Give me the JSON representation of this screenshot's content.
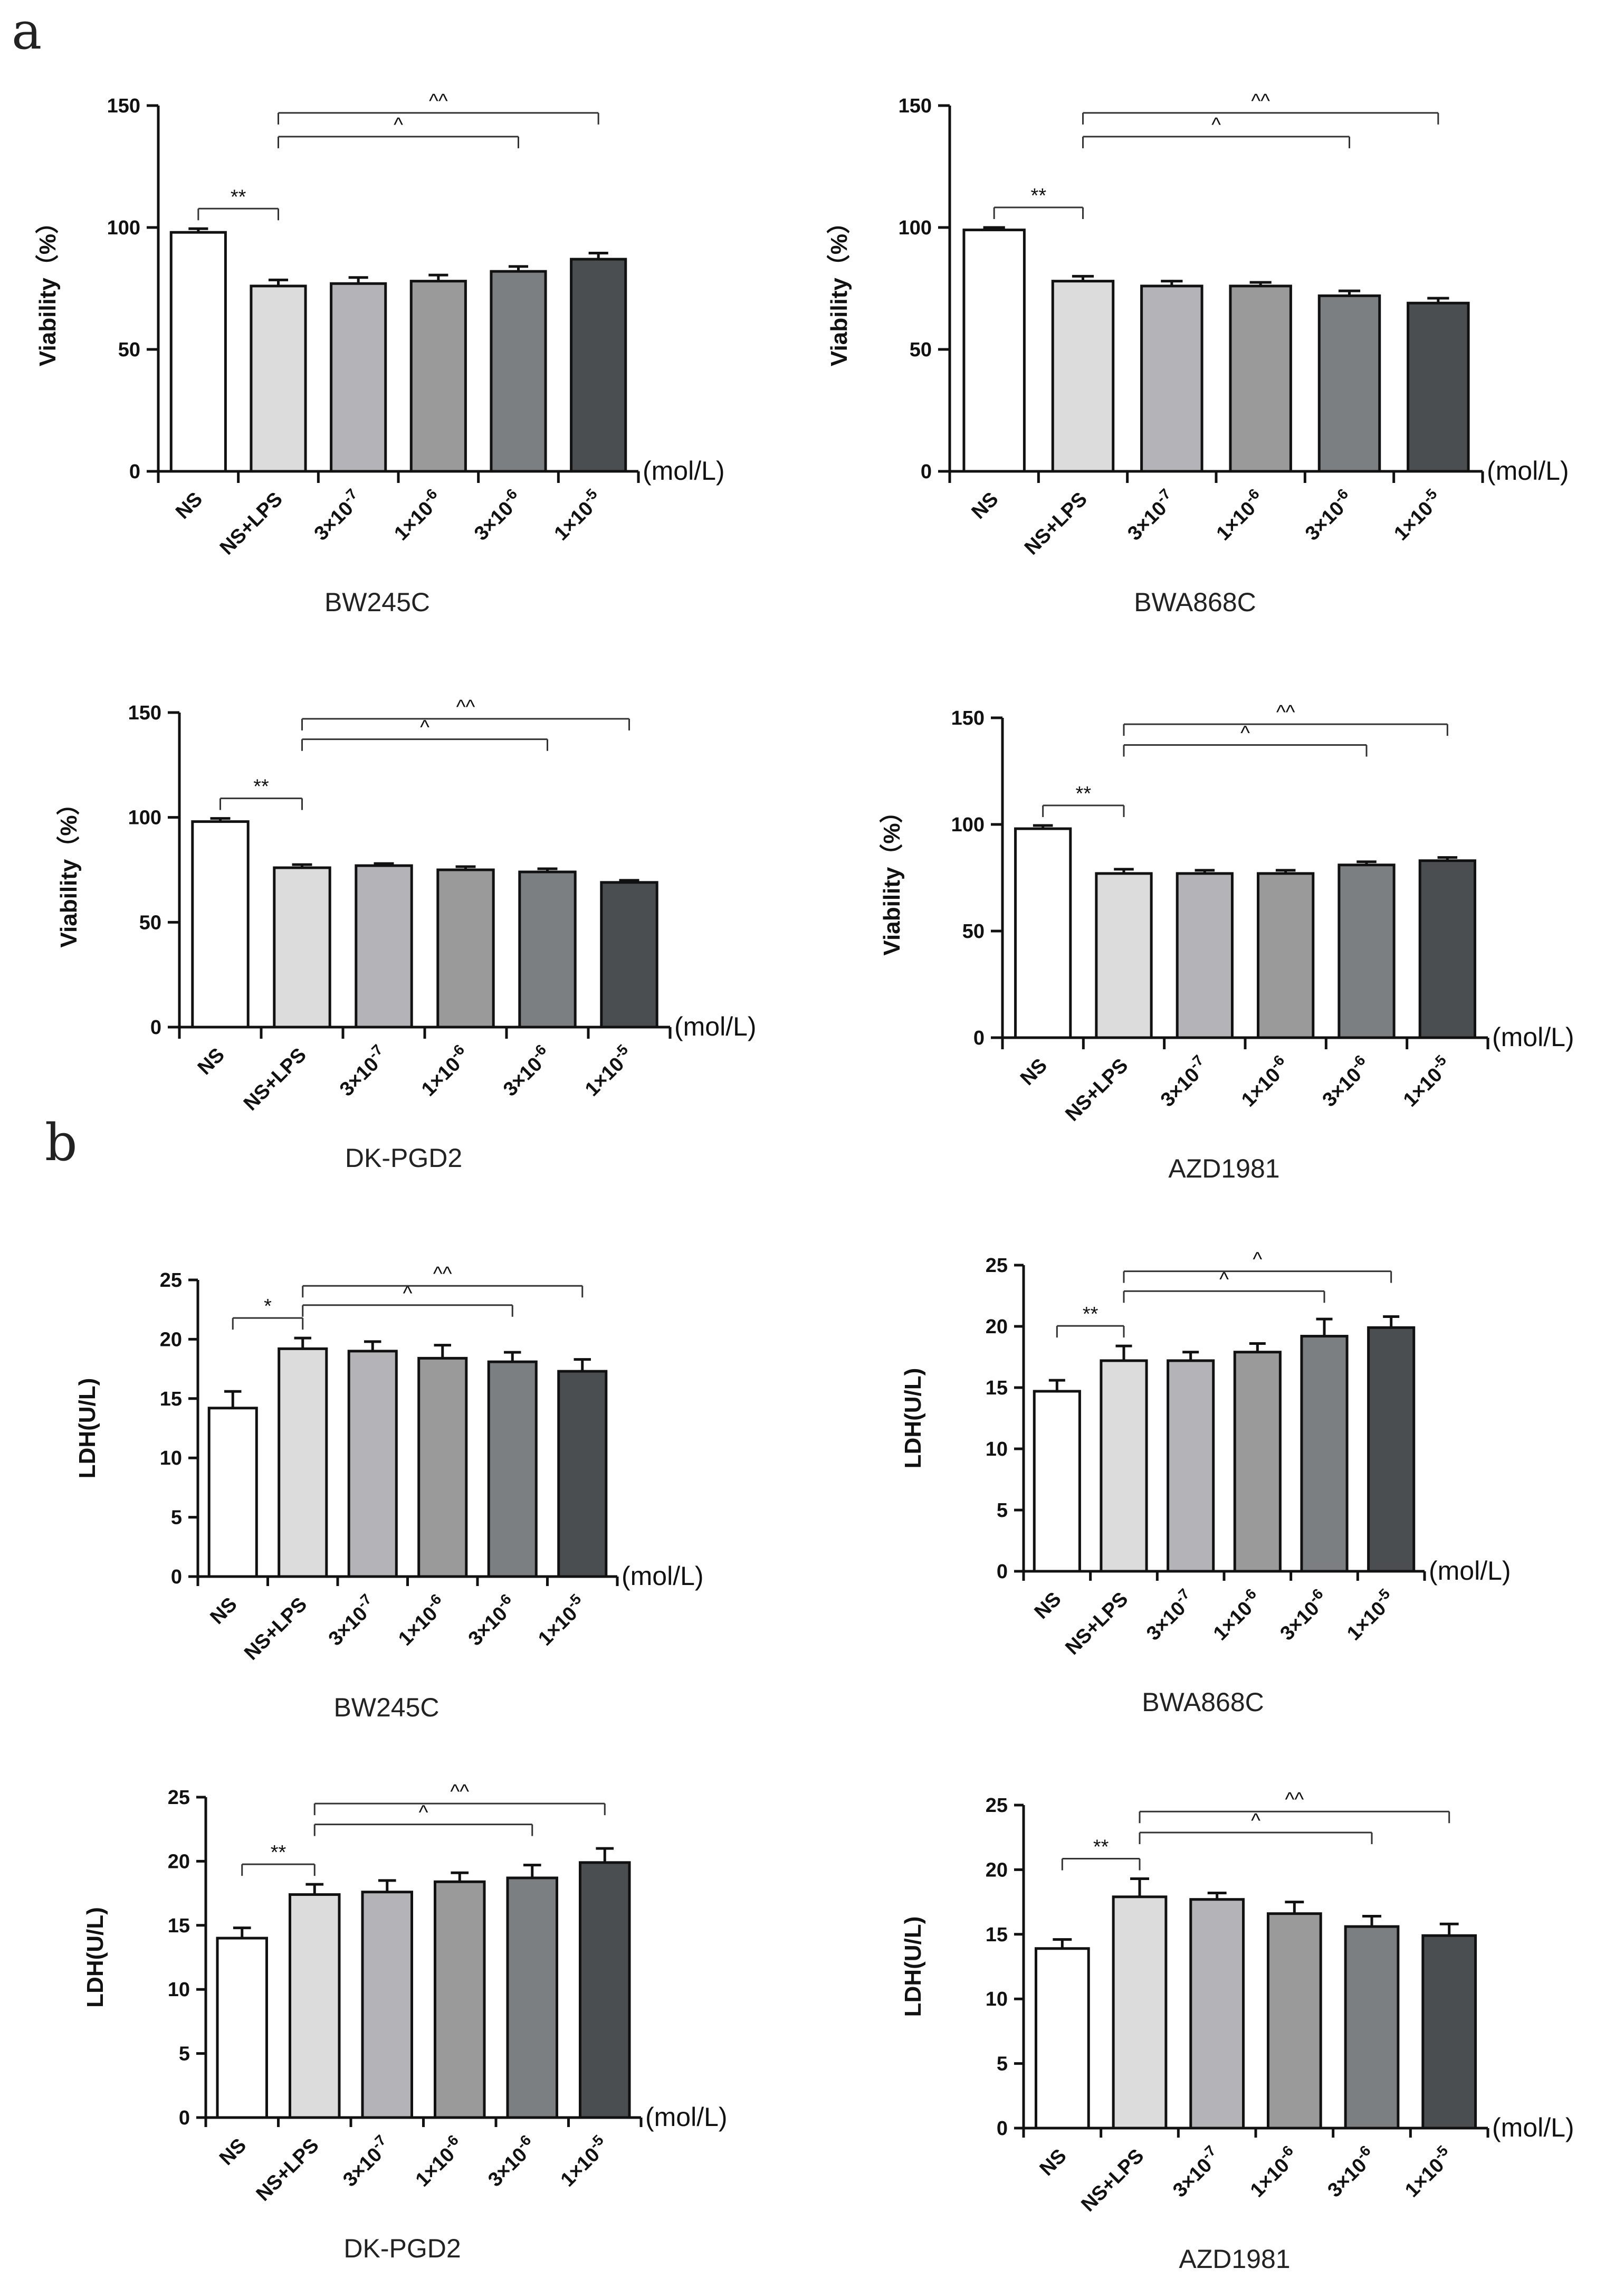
{
  "panel_labels": [
    "a",
    "b"
  ],
  "colors": [
    "#ffffff",
    "#dcdcdc",
    "#b4b4b8",
    "#9a9a9a",
    "#7b7f81",
    "#4a4e50"
  ],
  "chart_data": [
    {
      "type": "bar",
      "title": "BW245C",
      "ylabel": "Viability（%）",
      "unit": "(mol/L)",
      "ylim": [
        0,
        150
      ],
      "yticks": [
        "0",
        "50",
        "100",
        "150"
      ],
      "categories": [
        "NS",
        "NS+LPS",
        "3×10",
        "1×10",
        "3×10",
        "1×10"
      ],
      "exponents": [
        "",
        "",
        "-7",
        "-6",
        "-6",
        "-5"
      ],
      "values": [
        98,
        76,
        77,
        78,
        82,
        87
      ],
      "errors": [
        1.5,
        2.5,
        2.5,
        2.5,
        2,
        2.5
      ],
      "significance": [
        {
          "label": "**",
          "from": 0,
          "to": 1
        },
        {
          "label": "^",
          "from": 1,
          "to": 4
        },
        {
          "label": "^^",
          "from": 1,
          "to": 5
        }
      ]
    },
    {
      "type": "bar",
      "title": "BWA868C",
      "ylabel": "Viability（%）",
      "unit": "(mol/L)",
      "ylim": [
        0,
        150
      ],
      "yticks": [
        "0",
        "50",
        "100",
        "150"
      ],
      "categories": [
        "NS",
        "NS+LPS",
        "3×10",
        "1×10",
        "3×10",
        "1×10"
      ],
      "exponents": [
        "",
        "",
        "-7",
        "-6",
        "-6",
        "-5"
      ],
      "values": [
        99,
        78,
        76,
        76,
        72,
        69
      ],
      "errors": [
        1,
        2,
        2,
        1.5,
        2,
        2
      ],
      "significance": [
        {
          "label": "**",
          "from": 0,
          "to": 1
        },
        {
          "label": "^",
          "from": 1,
          "to": 4
        },
        {
          "label": "^^",
          "from": 1,
          "to": 5
        }
      ]
    },
    {
      "type": "bar",
      "title": "DK-PGD2",
      "ylabel": "Viability（%）",
      "unit": "(mol/L)",
      "ylim": [
        0,
        150
      ],
      "yticks": [
        "0",
        "50",
        "100",
        "150"
      ],
      "categories": [
        "NS",
        "NS+LPS",
        "3×10",
        "1×10",
        "3×10",
        "1×10"
      ],
      "exponents": [
        "",
        "",
        "-7",
        "-6",
        "-6",
        "-5"
      ],
      "values": [
        98,
        76,
        77,
        75,
        74,
        69
      ],
      "errors": [
        1.5,
        1.5,
        1,
        1.5,
        1.5,
        1
      ],
      "significance": [
        {
          "label": "**",
          "from": 0,
          "to": 1
        },
        {
          "label": "^",
          "from": 1,
          "to": 4
        },
        {
          "label": "^^",
          "from": 1,
          "to": 5
        }
      ]
    },
    {
      "type": "bar",
      "title": "AZD1981",
      "ylabel": "Viability（%）",
      "unit": "(mol/L)",
      "ylim": [
        0,
        150
      ],
      "yticks": [
        "0",
        "50",
        "100",
        "150"
      ],
      "categories": [
        "NS",
        "NS+LPS",
        "3×10",
        "1×10",
        "3×10",
        "1×10"
      ],
      "exponents": [
        "",
        "",
        "-7",
        "-6",
        "-6",
        "-5"
      ],
      "values": [
        98,
        77,
        77,
        77,
        81,
        83
      ],
      "errors": [
        1.5,
        2,
        1.5,
        1.5,
        1.5,
        1.5
      ],
      "significance": [
        {
          "label": "**",
          "from": 0,
          "to": 1
        },
        {
          "label": "^",
          "from": 1,
          "to": 4
        },
        {
          "label": "^^",
          "from": 1,
          "to": 5
        }
      ]
    },
    {
      "type": "bar",
      "title": "BW245C",
      "ylabel": "LDH(U/L)",
      "unit": "(mol/L)",
      "ylim": [
        0,
        25
      ],
      "yticks": [
        "0",
        "5",
        "10",
        "15",
        "20",
        "25"
      ],
      "categories": [
        "NS",
        "NS+LPS",
        "3×10",
        "1×10",
        "3×10",
        "1×10"
      ],
      "exponents": [
        "",
        "",
        "-7",
        "-6",
        "-6",
        "-5"
      ],
      "values": [
        14.2,
        19.2,
        19.0,
        18.4,
        18.1,
        17.3
      ],
      "errors": [
        1.4,
        0.9,
        0.8,
        1.1,
        0.8,
        1.0
      ],
      "significance": [
        {
          "label": "*",
          "from": 0,
          "to": 1
        },
        {
          "label": "^",
          "from": 1,
          "to": 4
        },
        {
          "label": "^^",
          "from": 1,
          "to": 5
        }
      ]
    },
    {
      "type": "bar",
      "title": "BWA868C",
      "ylabel": "LDH(U/L)",
      "unit": "(mol/L)",
      "ylim": [
        0,
        25
      ],
      "yticks": [
        "0",
        "5",
        "10",
        "15",
        "20",
        "25"
      ],
      "categories": [
        "NS",
        "NS+LPS",
        "3×10",
        "1×10",
        "3×10",
        "1×10"
      ],
      "exponents": [
        "",
        "",
        "-7",
        "-6",
        "-6",
        "-5"
      ],
      "values": [
        14.7,
        17.2,
        17.2,
        17.9,
        19.2,
        19.9
      ],
      "errors": [
        0.9,
        1.2,
        0.7,
        0.7,
        1.4,
        0.9
      ],
      "significance": [
        {
          "label": "**",
          "from": 0,
          "to": 1
        },
        {
          "label": "^",
          "from": 1,
          "to": 4
        },
        {
          "label": "^",
          "from": 1,
          "to": 5
        }
      ]
    },
    {
      "type": "bar",
      "title": "DK-PGD2",
      "ylabel": "LDH(U/L)",
      "unit": "(mol/L)",
      "ylim": [
        0,
        25
      ],
      "yticks": [
        "0",
        "5",
        "10",
        "15",
        "20",
        "25"
      ],
      "categories": [
        "NS",
        "NS+LPS",
        "3×10",
        "1×10",
        "3×10",
        "1×10"
      ],
      "exponents": [
        "",
        "",
        "-7",
        "-6",
        "-6",
        "-5"
      ],
      "values": [
        14.0,
        17.4,
        17.6,
        18.4,
        18.7,
        19.9
      ],
      "errors": [
        0.8,
        0.8,
        0.9,
        0.7,
        1.0,
        1.1
      ],
      "significance": [
        {
          "label": "**",
          "from": 0,
          "to": 1
        },
        {
          "label": "^",
          "from": 1,
          "to": 4
        },
        {
          "label": "^^",
          "from": 1,
          "to": 5
        }
      ]
    },
    {
      "type": "bar",
      "title": "AZD1981",
      "ylabel": "LDH(U/L)",
      "unit": "(mol/L)",
      "ylim": [
        0,
        25
      ],
      "yticks": [
        "0",
        "5",
        "10",
        "15",
        "20",
        "25"
      ],
      "categories": [
        "NS",
        "NS+LPS",
        "3×10",
        "1×10",
        "3×10",
        "1×10"
      ],
      "exponents": [
        "",
        "",
        "-7",
        "-6",
        "-6",
        "-5"
      ],
      "values": [
        13.9,
        17.9,
        17.7,
        16.6,
        15.6,
        14.9
      ],
      "errors": [
        0.7,
        1.4,
        0.5,
        0.9,
        0.8,
        0.9
      ],
      "significance": [
        {
          "label": "**",
          "from": 0,
          "to": 1
        },
        {
          "label": "^",
          "from": 1,
          "to": 4
        },
        {
          "label": "^^",
          "from": 1,
          "to": 5
        }
      ]
    }
  ]
}
